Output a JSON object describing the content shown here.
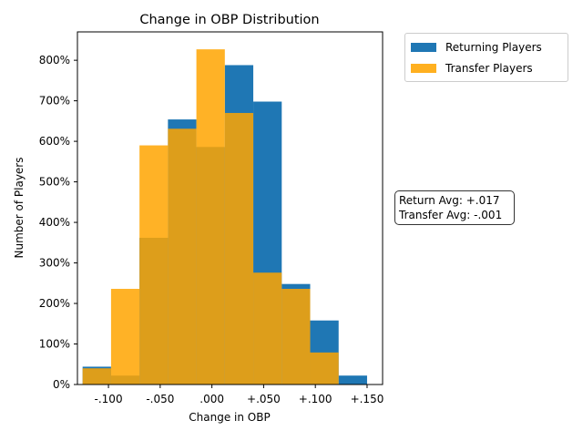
{
  "chart_data": {
    "type": "bar",
    "title": "Change in OBP Distribution",
    "xlabel": "Change in OBP",
    "ylabel": "Number of Players",
    "xlim": [
      -0.13,
      0.165
    ],
    "ylim": [
      0,
      8.7
    ],
    "x_ticks": [
      {
        "value": -0.1,
        "label": "-.100"
      },
      {
        "value": -0.05,
        "label": "-.050"
      },
      {
        "value": 0.0,
        "label": ".000"
      },
      {
        "value": 0.05,
        "label": "+.050"
      },
      {
        "value": 0.1,
        "label": "+.100"
      },
      {
        "value": 0.15,
        "label": "+.150"
      }
    ],
    "y_ticks": [
      {
        "value": 0,
        "label": "0%"
      },
      {
        "value": 1,
        "label": "100%"
      },
      {
        "value": 2,
        "label": "200%"
      },
      {
        "value": 3,
        "label": "300%"
      },
      {
        "value": 4,
        "label": "400%"
      },
      {
        "value": 5,
        "label": "500%"
      },
      {
        "value": 6,
        "label": "600%"
      },
      {
        "value": 7,
        "label": "700%"
      },
      {
        "value": 8,
        "label": "800%"
      }
    ],
    "bin_edges": [
      -0.125,
      -0.0975,
      -0.07,
      -0.0425,
      -0.015,
      0.0125,
      0.04,
      0.0675,
      0.095,
      0.1225,
      0.15
    ],
    "series": [
      {
        "name": "Returning Players",
        "color": "#1f77b4",
        "values": [
          0.44,
          0.22,
          3.62,
          6.54,
          5.86,
          7.88,
          6.98,
          2.48,
          1.58,
          0.22
        ]
      },
      {
        "name": "Transfer Players",
        "color": "#ffa500",
        "alpha": 0.85,
        "values": [
          0.4,
          2.36,
          5.9,
          6.31,
          8.27,
          6.7,
          2.76,
          2.36,
          0.79,
          0
        ]
      }
    ],
    "legend_position": "upper-right-outside",
    "grid": false,
    "annotation": {
      "lines": [
        "Return Avg: +.017",
        "Transfer Avg: -.001"
      ]
    }
  }
}
